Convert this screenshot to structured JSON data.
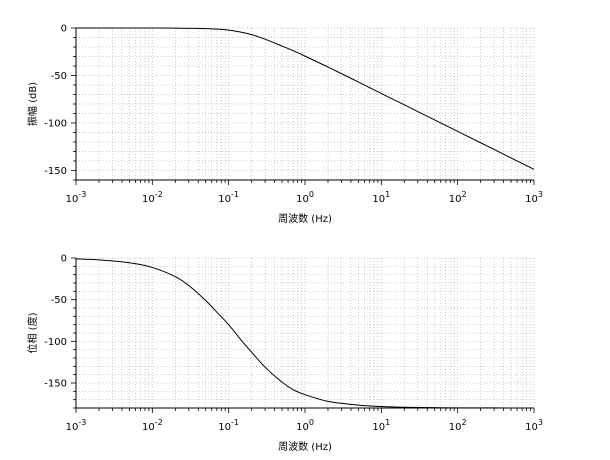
{
  "chart_data": [
    {
      "type": "line",
      "title": "",
      "xlabel": "周波数 (Hz)",
      "ylabel": "振幅 (dB)",
      "x_scale": "log",
      "xlim": [
        0.001,
        1000
      ],
      "ylim": [
        -160,
        0
      ],
      "x_ticks": [
        {
          "base": "10",
          "exp": "-3"
        },
        {
          "base": "10",
          "exp": "-2"
        },
        {
          "base": "10",
          "exp": "-1"
        },
        {
          "base": "10",
          "exp": "0"
        },
        {
          "base": "10",
          "exp": "1"
        },
        {
          "base": "10",
          "exp": "2"
        },
        {
          "base": "10",
          "exp": "3"
        }
      ],
      "y_ticks": [
        "0",
        "-50",
        "-100",
        "-150"
      ],
      "grid": true,
      "series": [
        {
          "color": "#000000",
          "x": [
            0.001,
            0.002,
            0.005,
            0.01,
            0.02,
            0.05,
            0.08,
            0.1,
            0.12,
            0.15,
            0.2,
            0.3,
            0.5,
            0.7,
            1,
            2,
            5,
            10,
            20,
            50,
            100,
            200,
            500,
            1000
          ],
          "y": [
            0,
            0,
            -0.01,
            -0.03,
            -0.1,
            -0.6,
            -1.5,
            -2.3,
            -3.2,
            -4.6,
            -7.0,
            -11.8,
            -19.0,
            -23.9,
            -29.6,
            -41.1,
            -56.8,
            -68.9,
            -80.9,
            -96.8,
            -108.8,
            -120.8,
            -136.8,
            -148.8
          ]
        }
      ]
    },
    {
      "type": "line",
      "title": "",
      "xlabel": "周波数 (Hz)",
      "ylabel": "位相 (度)",
      "x_scale": "log",
      "xlim": [
        0.001,
        1000
      ],
      "ylim": [
        -180,
        0
      ],
      "x_ticks": [
        {
          "base": "10",
          "exp": "-3"
        },
        {
          "base": "10",
          "exp": "-2"
        },
        {
          "base": "10",
          "exp": "-1"
        },
        {
          "base": "10",
          "exp": "0"
        },
        {
          "base": "10",
          "exp": "1"
        },
        {
          "base": "10",
          "exp": "2"
        },
        {
          "base": "10",
          "exp": "3"
        }
      ],
      "y_ticks": [
        "0",
        "-50",
        "-100",
        "-150"
      ],
      "grid": true,
      "series": [
        {
          "color": "#000000",
          "x": [
            0.001,
            0.002,
            0.005,
            0.01,
            0.02,
            0.03,
            0.05,
            0.07,
            0.1,
            0.15,
            0.2,
            0.3,
            0.5,
            0.7,
            1,
            2,
            5,
            10,
            20,
            50,
            100,
            1000
          ],
          "y": [
            -1.1,
            -2.3,
            -5.7,
            -11.3,
            -22.4,
            -33.0,
            -51.0,
            -65.0,
            -80.0,
            -100.0,
            -113.0,
            -131.0,
            -149.0,
            -158.0,
            -164.0,
            -172.0,
            -176.5,
            -178.2,
            -179.1,
            -179.6,
            -179.8,
            -180.0
          ]
        }
      ]
    }
  ]
}
